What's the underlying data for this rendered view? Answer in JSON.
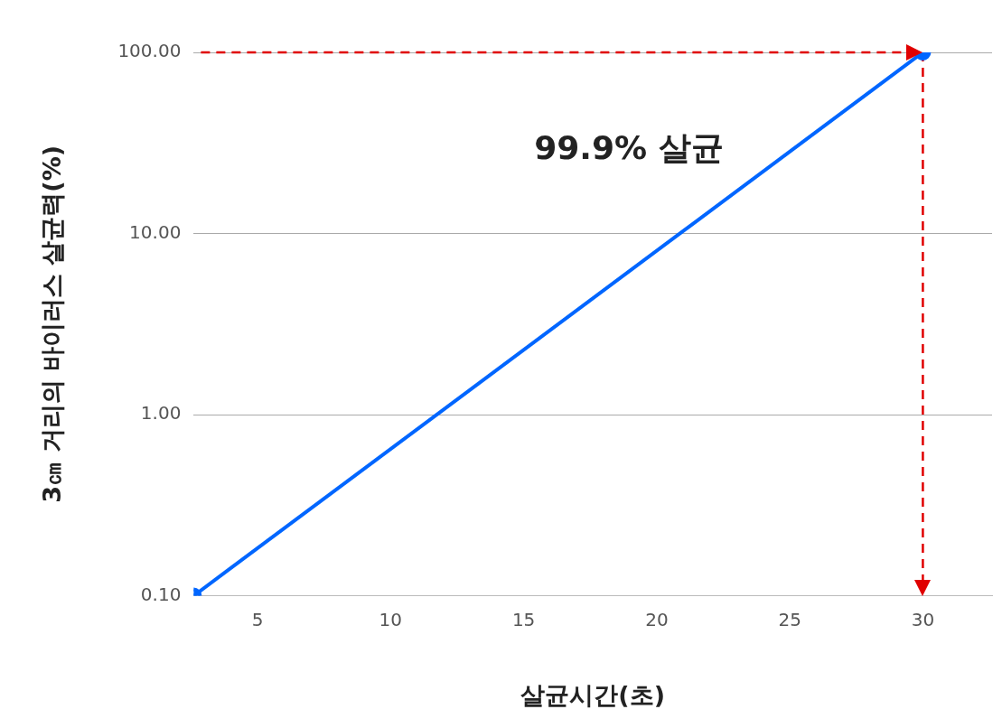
{
  "chart_data": {
    "type": "line",
    "xlabel": "살균시간(초)",
    "ylabel": "3㎝ 거리의 바이러스 살균력(%)",
    "x": [
      2.6,
      30
    ],
    "values": [
      0.1,
      100
    ],
    "color": "#0066ff",
    "xlim": [
      2.6,
      32.6
    ],
    "xticks": [
      5,
      10,
      15,
      20,
      25,
      30
    ],
    "ylim": [
      0.1,
      100
    ],
    "yticks": [
      {
        "value": 0.1,
        "label": "0.10"
      },
      {
        "value": 1,
        "label": "1.00"
      },
      {
        "value": 10,
        "label": "10.00"
      },
      {
        "value": 100,
        "label": "100.00"
      }
    ],
    "log": "y",
    "grid": "y",
    "legend": false,
    "marker": "circle",
    "line_style": "solid",
    "ref_lines": [
      {
        "axis": "y",
        "value": 100,
        "color": "#e00000",
        "line_style": "dashed"
      },
      {
        "axis": "x",
        "value": 30,
        "color": "#e00000",
        "line_style": "dashed"
      }
    ],
    "annotations": [
      "99.9% 살균"
    ]
  }
}
